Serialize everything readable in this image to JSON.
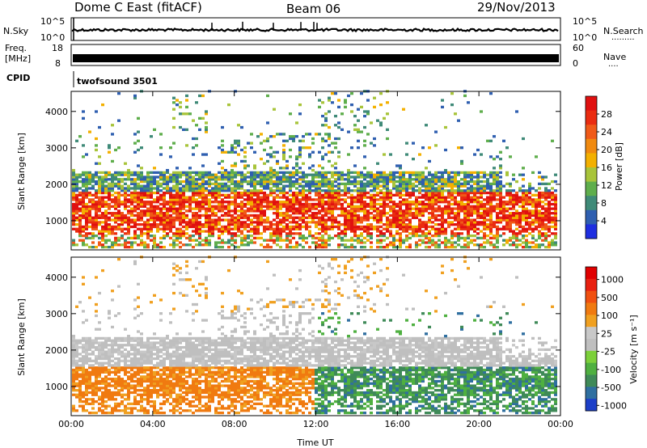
{
  "header": {
    "station": "Dome C East (fitACF)",
    "beam": "Beam 06",
    "date": "29/Nov/2013"
  },
  "status_panels": {
    "nsky": {
      "label": "N.Sky",
      "left_ticks": [
        "10^5",
        "10^0"
      ],
      "right_ticks": [
        "10^5",
        "10^0"
      ],
      "right_label": "N.Search",
      "right_dots": "........."
    },
    "freq": {
      "label_line1": "Freq.",
      "label_line2": "[MHz]",
      "left_ticks": [
        "18",
        "8"
      ],
      "right_ticks": [
        "60",
        "0"
      ],
      "right_label": "Nave",
      "right_dots": "...."
    },
    "cpid": {
      "label": "CPID",
      "value": "twofsound 3501"
    }
  },
  "chart_data": [
    {
      "type": "heatmap",
      "name": "power",
      "ylabel": "Slant Range [km]",
      "yticks": [
        "1000",
        "2000",
        "3000",
        "4000"
      ],
      "ylim": [
        200,
        4550
      ],
      "xticks": [
        "00:00",
        "04:00",
        "08:00",
        "12:00",
        "16:00",
        "20:00",
        "00:00"
      ],
      "colorbar": {
        "label": "Power [dB]",
        "ticks": [
          "4",
          "8",
          "12",
          "16",
          "20",
          "24",
          "28"
        ],
        "colors": [
          "#1e2ee0",
          "#2f5fb0",
          "#3f8a78",
          "#5fae4c",
          "#a8c43a",
          "#f3b000",
          "#f08a10",
          "#f05a18",
          "#ea2c10",
          "#e01010"
        ]
      }
    },
    {
      "type": "heatmap",
      "name": "velocity",
      "ylabel": "Slant Range [km]",
      "yticks": [
        "1000",
        "2000",
        "3000",
        "4000"
      ],
      "ylim": [
        200,
        4550
      ],
      "xticks": [
        "00:00",
        "04:00",
        "08:00",
        "12:00",
        "16:00",
        "20:00",
        "00:00"
      ],
      "xlabel": "Time UT",
      "colorbar": {
        "label": "Velocity [m s⁻¹]",
        "ticks": [
          "1000",
          "500",
          "100",
          "25",
          "-25",
          "-100",
          "-500",
          "-1000"
        ],
        "colors": [
          "#1c3fc8",
          "#2f6fa0",
          "#3f8a58",
          "#4fb040",
          "#7cd03a",
          "#bfbfbf",
          "#c8c8c8",
          "#f0a020",
          "#f07a10",
          "#f05010",
          "#e82010",
          "#e00000"
        ]
      }
    }
  ]
}
